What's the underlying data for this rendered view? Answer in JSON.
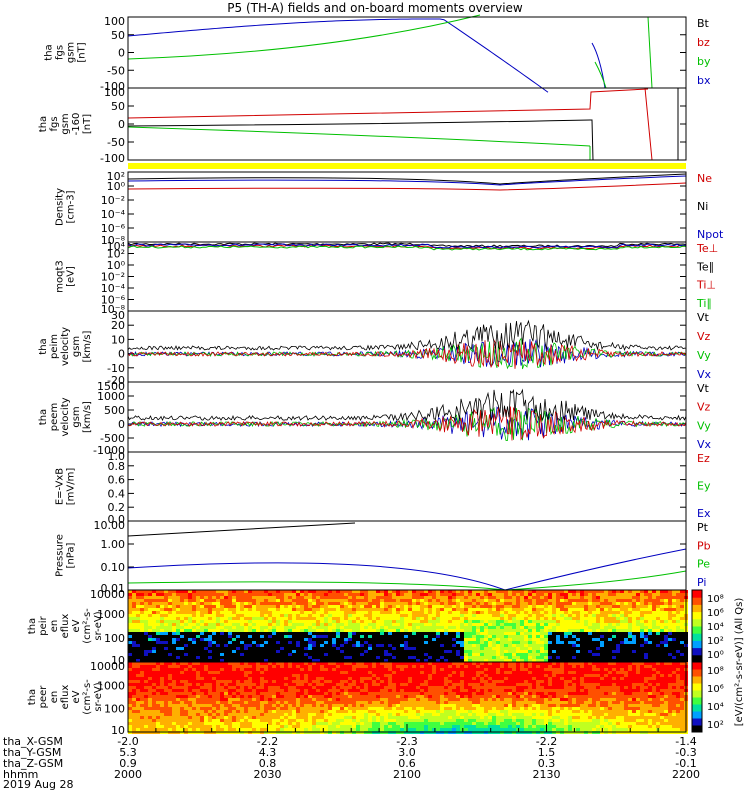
{
  "title": "P5 (TH-A) fields and on-board moments overview",
  "colors": {
    "black": "#000000",
    "red": "#d00000",
    "green": "#00c000",
    "blue": "#0000c0",
    "yellow": "#ffff00"
  },
  "chart_data": [
    {
      "id": "bfield_gsm",
      "type": "line",
      "ylabel": [
        "tha",
        "fgs",
        "gsm",
        "[nT]"
      ],
      "yticks": [
        "100",
        "50",
        "0",
        "-50",
        "-100"
      ],
      "ylim": [
        -100,
        100
      ],
      "series": [
        {
          "name": "Bt",
          "color": "black"
        },
        {
          "name": "bz",
          "color": "red"
        },
        {
          "name": "by",
          "color": "green"
        },
        {
          "name": "bx",
          "color": "blue"
        }
      ]
    },
    {
      "id": "bfield_gse",
      "type": "line",
      "ylabel": [
        "tha",
        "fgs",
        "gsm",
        "-160",
        "[nT]"
      ],
      "yticks": [
        "100",
        "50",
        "0",
        "-50",
        "-100"
      ],
      "ylim": [
        -120,
        120
      ],
      "series": [
        {
          "name": "",
          "color": "black"
        }
      ]
    },
    {
      "id": "density",
      "type": "line",
      "ylabel": [
        "Density",
        "[cm-3]"
      ],
      "yticks": [
        "10²",
        "10⁰",
        "10⁻²",
        "10⁻⁴",
        "10⁻⁶",
        "10⁻⁸"
      ],
      "log": true,
      "series": [
        {
          "name": "Ne",
          "color": "red"
        },
        {
          "name": "Ni",
          "color": "black"
        },
        {
          "name": "Npot",
          "color": "blue"
        }
      ]
    },
    {
      "id": "temperature",
      "type": "line",
      "ylabel": [
        "moqt3",
        "[eV]"
      ],
      "yticks": [
        "10⁴",
        "10²",
        "10⁰",
        "10⁻²",
        "10⁻⁴",
        "10⁻⁶",
        "10⁻⁸"
      ],
      "log": true,
      "series": [
        {
          "name": "Te⊥",
          "color": "red"
        },
        {
          "name": "Te∥",
          "color": "black"
        },
        {
          "name": "Ti⊥",
          "color": "red"
        },
        {
          "name": "Ti∥",
          "color": "green"
        }
      ]
    },
    {
      "id": "velocity_peim",
      "type": "line",
      "ylabel": [
        "tha",
        "peim",
        "velocity",
        "gsm",
        "[km/s]"
      ],
      "yticks": [
        "30",
        "20",
        "10",
        "0",
        "-10",
        "-20"
      ],
      "ylim": [
        -20,
        30
      ],
      "series": [
        {
          "name": "Vt",
          "color": "black"
        },
        {
          "name": "Vz",
          "color": "red"
        },
        {
          "name": "Vy",
          "color": "green"
        },
        {
          "name": "Vx",
          "color": "blue"
        }
      ]
    },
    {
      "id": "velocity_peem",
      "type": "line",
      "ylabel": [
        "tha",
        "peem",
        "velocity",
        "gsm",
        "[km/s]"
      ],
      "yticks": [
        "1500",
        "1000",
        "500",
        "0",
        "-500",
        "-1000"
      ],
      "ylim": [
        -1000,
        1500
      ],
      "series": [
        {
          "name": "Vt",
          "color": "black"
        },
        {
          "name": "Vz",
          "color": "red"
        },
        {
          "name": "Vy",
          "color": "green"
        },
        {
          "name": "Vx",
          "color": "blue"
        }
      ]
    },
    {
      "id": "efield",
      "type": "line",
      "ylabel": [
        "E=-VxB",
        "[mV/m]"
      ],
      "yticks": [
        "1.0",
        "0.8",
        "0.6",
        "0.4",
        "0.2",
        "0.0"
      ],
      "ylim": [
        0,
        1
      ],
      "series": [
        {
          "name": "Ez",
          "color": "red"
        },
        {
          "name": "Ey",
          "color": "green"
        },
        {
          "name": "Ex",
          "color": "blue"
        }
      ]
    },
    {
      "id": "pressure",
      "type": "line",
      "ylabel": [
        "Pressure",
        "[nPa]"
      ],
      "yticks": [
        "10.00",
        "1.00",
        "0.10",
        "0.01"
      ],
      "log": true,
      "series": [
        {
          "name": "Pt",
          "color": "black"
        },
        {
          "name": "Pb",
          "color": "red"
        },
        {
          "name": "Pe",
          "color": "green"
        },
        {
          "name": "Pi",
          "color": "blue"
        }
      ]
    },
    {
      "id": "peir_spec",
      "type": "heatmap",
      "ylabel": [
        "tha",
        "peir",
        "en",
        "eflux",
        "eV",
        "(cm²-s-",
        "sr-eV)"
      ],
      "yticks": [
        "10000",
        "1000",
        "100",
        "10"
      ],
      "colorbar_ticks": [
        "10⁸",
        "10⁶",
        "10⁴",
        "10²",
        "10⁰"
      ],
      "colorbar_label": "[eV/(cm²-s-sr-eV)]  (All Qs)"
    },
    {
      "id": "peer_spec",
      "type": "heatmap",
      "ylabel": [
        "tha",
        "peer",
        "en",
        "eflux",
        "eV",
        "(cm²-s-",
        "sr-eV)"
      ],
      "yticks": [
        "10000",
        "1000",
        "100",
        "10"
      ],
      "colorbar_ticks": [
        "10⁸",
        "10⁶",
        "10⁴",
        "10²"
      ],
      "colorbar_label": "[eV/(cm²-s-sr-eV)]"
    }
  ],
  "xaxis": {
    "rows": [
      {
        "label": "tha_X-GSM",
        "values": [
          "-2.0",
          "-2.2",
          "-2.3",
          "-2.2",
          "-1.4"
        ]
      },
      {
        "label": "tha_Y-GSM",
        "values": [
          "5.3",
          "4.3",
          "3.0",
          "1.5",
          "-0.3"
        ]
      },
      {
        "label": "tha_Z-GSM",
        "values": [
          "0.9",
          "0.8",
          "0.6",
          "0.3",
          "-0.1"
        ]
      },
      {
        "label": "hhmm",
        "values": [
          "2000",
          "2030",
          "2100",
          "2130",
          "2200"
        ]
      }
    ],
    "date": "2019 Aug 28"
  }
}
